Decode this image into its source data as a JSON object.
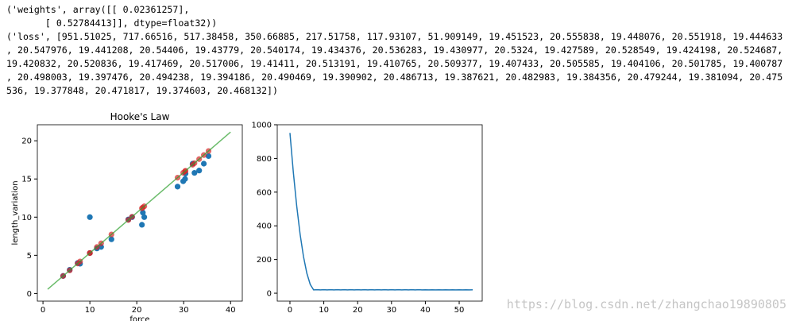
{
  "output_text": {
    "lines": [
      "('weights', array([[ 0.02361257],",
      "       [ 0.52784413]], dtype=float32))",
      "('loss', [951.51025, 717.66516, 517.38458, 350.66885, 217.51758, 117.93107, 51.909149, 19.451523, 20.555838, 19.448076, 20.551918, 19.444633",
      ", 20.547976, 19.441208, 20.54406, 19.43779, 20.540174, 19.434376, 20.536283, 19.430977, 20.5324, 19.427589, 20.528549, 19.424198, 20.524687,",
      "19.420832, 20.520836, 19.417469, 20.517006, 19.41411, 20.513191, 19.410765, 20.509377, 19.407433, 20.505585, 19.404106, 20.501785, 19.400787",
      ", 20.498003, 19.397476, 20.494238, 19.394186, 20.490469, 19.390902, 20.486713, 19.387621, 20.482983, 19.384356, 20.479244, 19.381094, 20.475",
      "536, 19.377848, 20.471817, 19.374603, 20.468132])"
    ]
  },
  "watermark": "https://blog.csdn.net/zhangchao19890805",
  "chart_data": [
    {
      "type": "scatter",
      "title": "Hooke's Law",
      "x_label": "force",
      "y_label": "length_variation",
      "xlim": [
        -1.2,
        42.5
      ],
      "xticks": [
        0,
        10,
        20,
        30,
        40
      ],
      "ylim": [
        -1.0,
        22.1
      ],
      "yticks": [
        0,
        5,
        10,
        15,
        20
      ],
      "series": [
        {
          "type": "scatter",
          "color": "#1f77b4",
          "alpha": 1,
          "x": [
            4.3,
            5.7,
            7.4,
            7.9,
            10,
            10,
            11.5,
            12.4,
            14.6,
            18.2,
            19.0,
            21.1,
            21.3,
            21.6,
            28.7,
            29.9,
            30.3,
            30.4,
            31.9,
            32.3,
            33.3,
            34.3,
            35.3
          ],
          "values": [
            2.3,
            3.1,
            4.0,
            3.9,
            5.3,
            10.0,
            5.9,
            6.1,
            7.1,
            9.7,
            10.0,
            9.0,
            10.6,
            10.0,
            14.0,
            14.7,
            15.0,
            15.7,
            17.0,
            15.8,
            16.1,
            17.0,
            18.0
          ]
        },
        {
          "type": "scatter",
          "color": "#d62728",
          "alpha": 0.7,
          "x": [
            4.3,
            5.7,
            7.4,
            7.9,
            10,
            10,
            11.5,
            12.4,
            14.6,
            18.2,
            19.0,
            21.1,
            21.3,
            21.6,
            28.7,
            29.9,
            30.3,
            30.4,
            31.9,
            32.3,
            33.3,
            34.3,
            35.3
          ],
          "values": [
            2.29,
            3.03,
            3.93,
            4.19,
            5.3,
            5.3,
            6.09,
            6.57,
            7.73,
            9.63,
            10.05,
            11.16,
            11.27,
            11.42,
            15.17,
            15.81,
            16.02,
            16.07,
            16.86,
            17.07,
            17.6,
            18.13,
            18.66
          ]
        },
        {
          "type": "line",
          "color": "#2ca02c",
          "alpha": 0.7,
          "x": [
            1,
            40
          ],
          "values": [
            0.55,
            21.14
          ]
        }
      ]
    },
    {
      "type": "line",
      "xlim": [
        -3.75,
        56.8
      ],
      "xticks": [
        0,
        10,
        20,
        30,
        40,
        50
      ],
      "ylim": [
        -47,
        1000
      ],
      "yticks": [
        0,
        200,
        400,
        600,
        800,
        1000
      ],
      "series": [
        {
          "type": "line",
          "color": "#1f77b4",
          "alpha": 1,
          "x": [
            0,
            1,
            2,
            3,
            4,
            5,
            6,
            7,
            8,
            9,
            10,
            11,
            12,
            13,
            14,
            15,
            16,
            17,
            18,
            19,
            20,
            21,
            22,
            23,
            24,
            25,
            26,
            27,
            28,
            29,
            30,
            31,
            32,
            33,
            34,
            35,
            36,
            37,
            38,
            39,
            40,
            41,
            42,
            43,
            44,
            45,
            46,
            47,
            48,
            49,
            50,
            51,
            52,
            53,
            54
          ],
          "values": [
            951.51025,
            717.66516,
            517.38458,
            350.66885,
            217.51758,
            117.93107,
            51.909149,
            19.451523,
            20.555838,
            19.448076,
            20.551918,
            19.444633,
            20.547976,
            19.441208,
            20.54406,
            19.43779,
            20.540174,
            19.434376,
            20.536283,
            19.430977,
            20.5324,
            19.427589,
            20.528549,
            19.424198,
            20.524687,
            19.420832,
            20.520836,
            19.417469,
            20.517006,
            19.41411,
            20.513191,
            19.410765,
            20.509377,
            19.407433,
            20.505585,
            19.404106,
            20.501785,
            19.400787,
            20.498003,
            19.397476,
            20.494238,
            19.394186,
            20.490469,
            19.390902,
            20.486713,
            19.387621,
            20.482983,
            19.384356,
            20.479244,
            19.381094,
            20.475536,
            19.377848,
            20.471817,
            19.374603,
            20.468132
          ]
        }
      ]
    }
  ]
}
